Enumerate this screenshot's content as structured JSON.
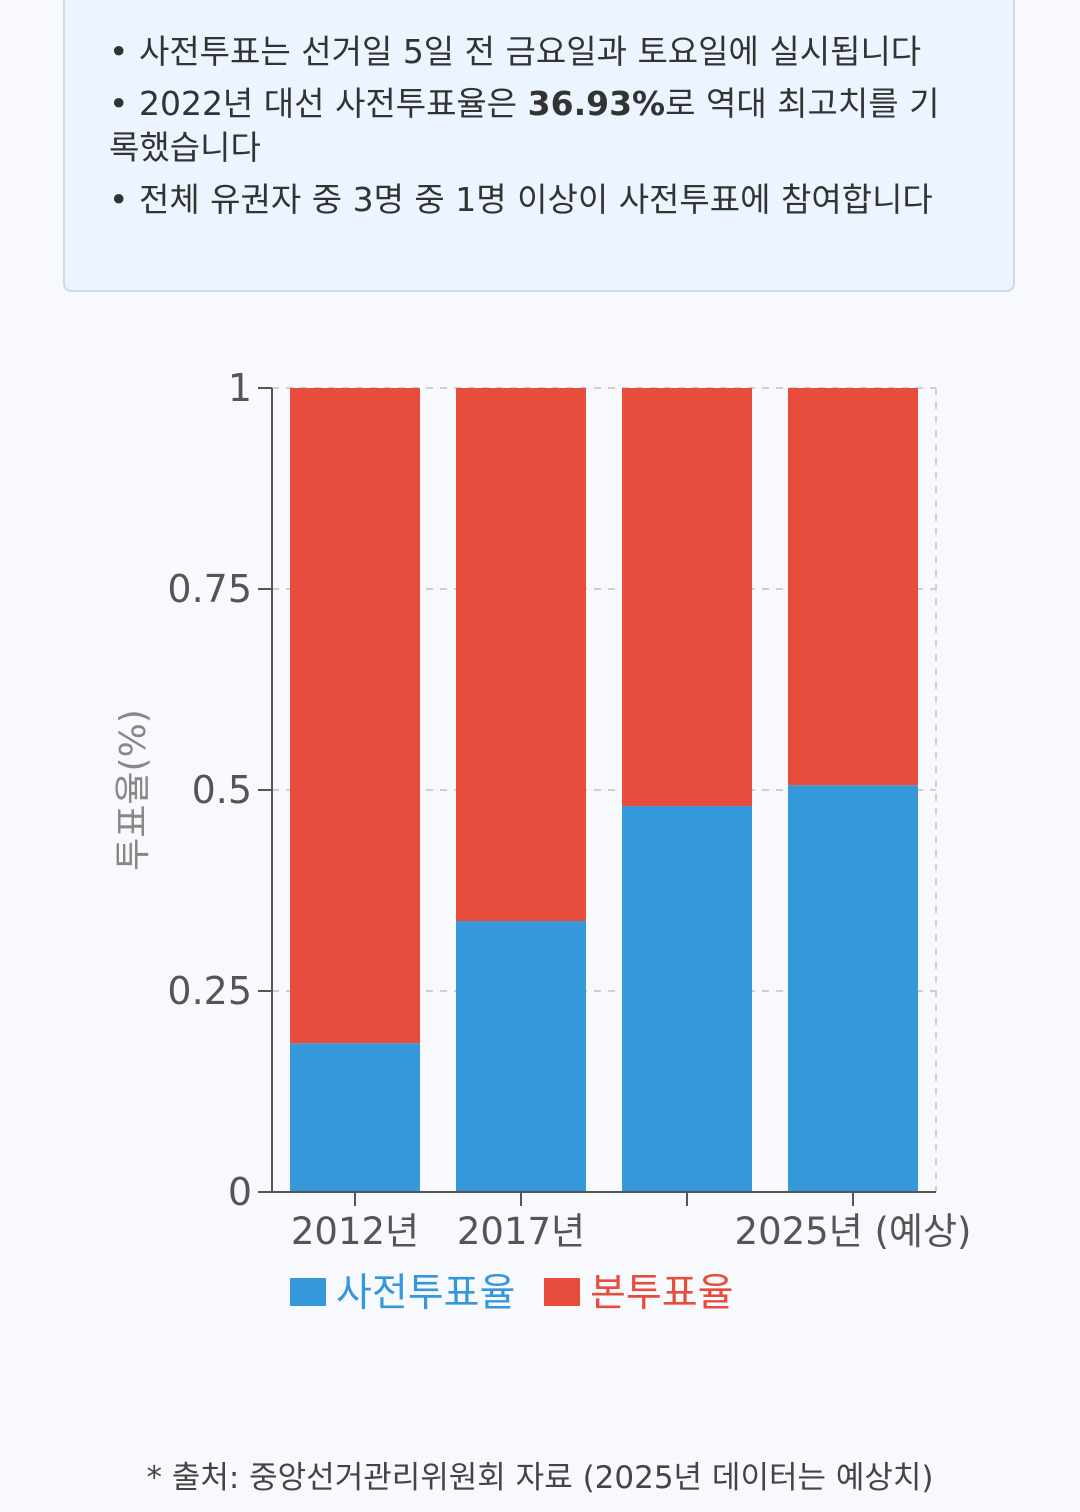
{
  "info": {
    "line1": "• 사전투표는 선거일 5일 전 금요일과 토요일에 실시됩니다",
    "line2_before": "• 2022년 대선 사전투표율은 ",
    "line2_bold": "36.93%",
    "line2_after": "로 역대 최고치를 기록했습니다",
    "line3": "• 전체 유권자 중 3명 중 1명 이상이 사전투표에 참여합니다"
  },
  "chart_data": {
    "type": "bar",
    "stacked": true,
    "categories": [
      "2012년",
      "2017년",
      "",
      "2025년 (예상)"
    ],
    "series": [
      {
        "name": "사전투표율",
        "color": "#3498db",
        "values": [
          0.185,
          0.337,
          0.48,
          0.506
        ]
      },
      {
        "name": "본투표율",
        "color": "#e74c3c",
        "values": [
          0.815,
          0.663,
          0.52,
          0.494
        ]
      }
    ],
    "ylabel": "투표율(%)",
    "ylim": [
      0,
      1
    ],
    "yticks": [
      "0",
      "0.25",
      "0.5",
      "0.75",
      "1"
    ],
    "ytick_values": [
      0,
      0.25,
      0.5,
      0.75,
      1
    ],
    "grid": true,
    "legend_position": "bottom"
  },
  "source": "* 출처: 중앙선거관리위원회 자료 (2025년 데이터는 예상치)"
}
